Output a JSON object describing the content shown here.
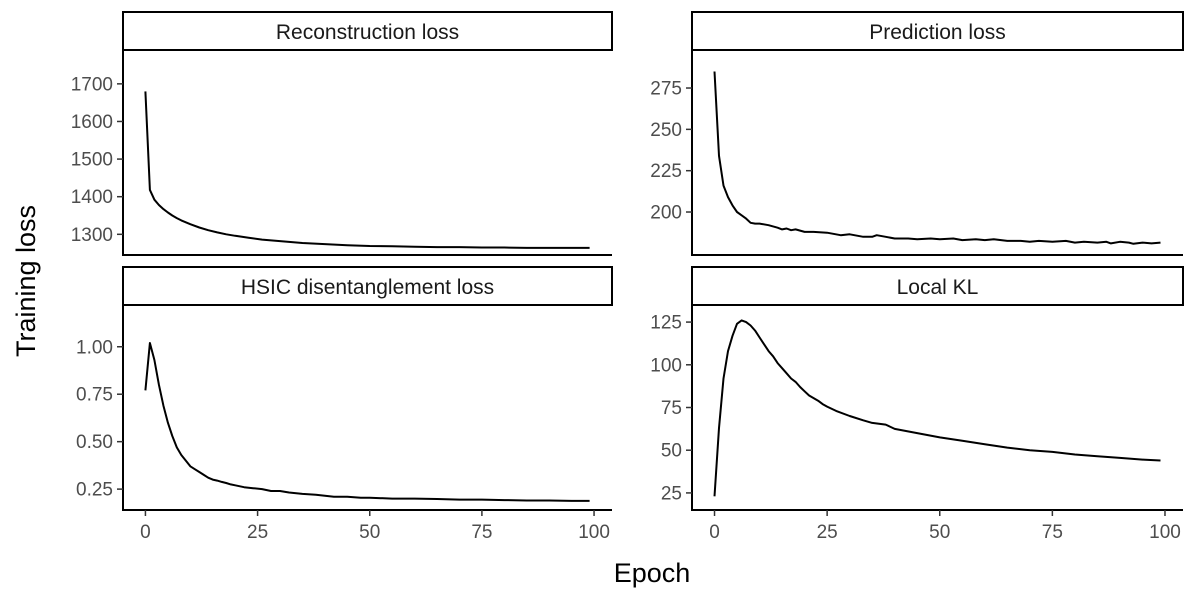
{
  "chart_data": {
    "type": "line",
    "xlabel": "Epoch",
    "ylabel": "Training loss",
    "xlim": [
      -5,
      104
    ],
    "xticks": [
      0,
      25,
      50,
      75,
      100
    ],
    "series_color": "#000000",
    "panels": [
      {
        "title": "Reconstruction loss",
        "ylim": [
          1245,
          1790
        ],
        "yticks": [
          1300,
          1400,
          1500,
          1600,
          1700
        ],
        "x": [
          0,
          1,
          2,
          3,
          4,
          5,
          6,
          7,
          8,
          9,
          10,
          12,
          14,
          16,
          18,
          20,
          23,
          26,
          30,
          35,
          40,
          45,
          50,
          55,
          60,
          65,
          70,
          75,
          80,
          85,
          90,
          95,
          99
        ],
        "y": [
          1680,
          1418,
          1392,
          1378,
          1367,
          1358,
          1350,
          1343,
          1337,
          1332,
          1327,
          1318,
          1311,
          1305,
          1300,
          1296,
          1291,
          1286,
          1282,
          1277,
          1274,
          1271,
          1269,
          1268,
          1267,
          1266,
          1266,
          1265,
          1265,
          1264,
          1264,
          1264,
          1264
        ]
      },
      {
        "title": "Prediction loss",
        "ylim": [
          174,
          298
        ],
        "yticks": [
          200,
          225,
          250,
          275
        ],
        "x": [
          0,
          1,
          2,
          3,
          4,
          5,
          6,
          7,
          8,
          9,
          10,
          12,
          14,
          15,
          16,
          17,
          18,
          20,
          22,
          25,
          28,
          30,
          33,
          35,
          36,
          38,
          40,
          43,
          45,
          48,
          50,
          53,
          55,
          58,
          60,
          62,
          65,
          68,
          70,
          72,
          75,
          78,
          80,
          82,
          85,
          87,
          88,
          90,
          92,
          93,
          95,
          97,
          99
        ],
        "y": [
          285,
          234,
          216,
          209,
          204,
          200,
          198,
          196,
          193.5,
          193,
          193,
          192,
          190.5,
          189.5,
          190,
          189,
          189.5,
          188,
          188,
          187.5,
          186,
          186.5,
          185,
          185,
          186,
          185,
          184,
          184,
          183.5,
          184,
          183.5,
          184,
          183,
          183.5,
          183,
          183.5,
          182.5,
          182.5,
          182,
          182.5,
          182,
          182.5,
          181.5,
          182,
          181.5,
          182,
          181,
          182,
          181.5,
          180.8,
          181.5,
          181,
          181.5
        ]
      },
      {
        "title": "HSIC disentanglement loss",
        "ylim": [
          0.14,
          1.22
        ],
        "yticks": [
          0.25,
          0.5,
          0.75,
          1.0
        ],
        "x": [
          0,
          1,
          2,
          3,
          4,
          5,
          6,
          7,
          8,
          9,
          10,
          11,
          12,
          13,
          14,
          15,
          16,
          17,
          18,
          19,
          20,
          22,
          24,
          26,
          28,
          30,
          32,
          35,
          38,
          40,
          42,
          45,
          48,
          50,
          55,
          60,
          65,
          70,
          75,
          80,
          85,
          90,
          95,
          99
        ],
        "y": [
          0.77,
          1.02,
          0.93,
          0.8,
          0.69,
          0.6,
          0.53,
          0.47,
          0.43,
          0.4,
          0.37,
          0.355,
          0.34,
          0.325,
          0.31,
          0.3,
          0.295,
          0.288,
          0.282,
          0.275,
          0.27,
          0.26,
          0.255,
          0.25,
          0.24,
          0.24,
          0.232,
          0.225,
          0.22,
          0.215,
          0.21,
          0.21,
          0.205,
          0.205,
          0.2,
          0.2,
          0.198,
          0.195,
          0.195,
          0.192,
          0.19,
          0.19,
          0.188,
          0.188
        ]
      },
      {
        "title": "Local KL",
        "ylim": [
          15,
          135
        ],
        "yticks": [
          25,
          50,
          75,
          100,
          125
        ],
        "x": [
          0,
          1,
          2,
          3,
          4,
          5,
          6,
          7,
          8,
          9,
          10,
          11,
          12,
          13,
          14,
          15,
          16,
          17,
          18,
          19,
          20,
          21,
          22,
          23,
          24,
          25,
          27,
          30,
          33,
          35,
          38,
          40,
          45,
          50,
          55,
          60,
          65,
          70,
          75,
          80,
          85,
          90,
          95,
          99
        ],
        "y": [
          23,
          63,
          92,
          108,
          117,
          124,
          126,
          125,
          123,
          120,
          116,
          112,
          108,
          105,
          101,
          98,
          95,
          92,
          90,
          87,
          84.5,
          82,
          80.5,
          79,
          77,
          75.5,
          73,
          70,
          67.5,
          66,
          65,
          62.5,
          60,
          57.5,
          55.5,
          53.5,
          51.5,
          50,
          49,
          47.5,
          46.5,
          45.5,
          44.5,
          44
        ]
      }
    ]
  }
}
